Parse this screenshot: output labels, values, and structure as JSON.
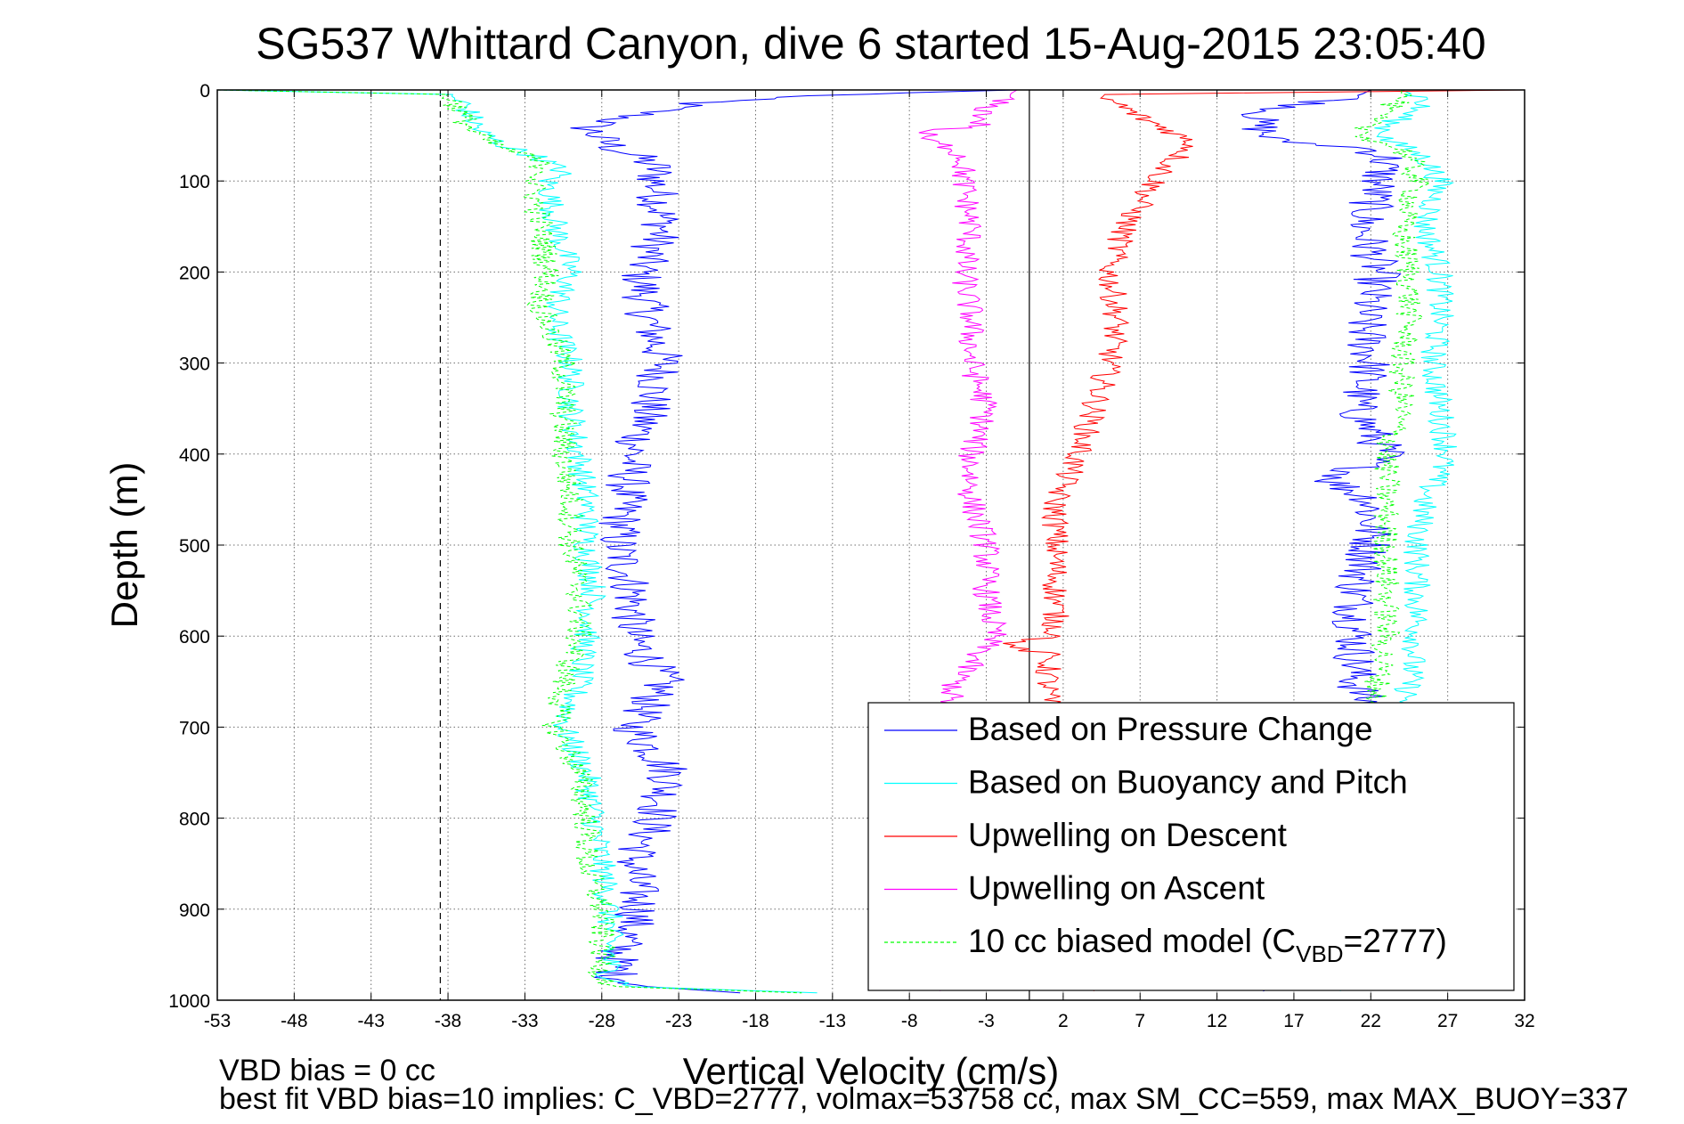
{
  "chart_data": {
    "type": "line",
    "title": "SG537 Whittard Canyon, dive 6 started 15-Aug-2015 23:05:40",
    "xlabel": "Vertical Velocity (cm/s)",
    "ylabel": "Depth (m)",
    "xlim": [
      -53,
      32
    ],
    "ylim": [
      0,
      1000
    ],
    "y_reversed": true,
    "grid": true,
    "xticks": [
      -53,
      -48,
      -43,
      -38,
      -33,
      -28,
      -23,
      -18,
      -13,
      -8,
      -3,
      2,
      7,
      12,
      17,
      22,
      27,
      32
    ],
    "yticks": [
      0,
      100,
      200,
      300,
      400,
      500,
      600,
      700,
      800,
      900,
      1000
    ],
    "legend_position": "bottom-right",
    "legend": [
      {
        "label": "Based on Pressure Change",
        "color": "#0000ff",
        "style": "solid"
      },
      {
        "label": "Based on Buoyancy and Pitch",
        "color": "#00ffff",
        "style": "solid"
      },
      {
        "label": "Upwelling on Descent",
        "color": "#ff0000",
        "style": "solid"
      },
      {
        "label": "Upwelling on Ascent",
        "color": "#ff00ff",
        "style": "solid"
      },
      {
        "label": "10 cc biased model (C",
        "sub": "VBD",
        "tail": "=2777)",
        "color": "#00ff00",
        "style": "dashed"
      }
    ],
    "reference_lines": [
      {
        "orientation": "vertical",
        "x": -38.5,
        "style": "dashed",
        "color": "#000000"
      },
      {
        "orientation": "vertical",
        "x": -0.2,
        "style": "solid",
        "color": "#000000"
      }
    ],
    "series": [
      {
        "color": "#0000ff",
        "width": 1,
        "jitter": 1.5,
        "depth": [
          0,
          3,
          8,
          15,
          25,
          40,
          55,
          65,
          75,
          85,
          100,
          150,
          200,
          250,
          300,
          350,
          400,
          450,
          500,
          550,
          600,
          650,
          700,
          750,
          800,
          850,
          900,
          950,
          975,
          985,
          992
        ],
        "x": [
          -1,
          -8,
          -17,
          -22,
          -25,
          -29,
          -28,
          -27,
          -25.5,
          -24.5,
          -24.5,
          -24,
          -25.5,
          -25,
          -24,
          -25,
          -26,
          -26.5,
          -27,
          -26,
          -26,
          -24,
          -26,
          -23.5,
          -24.5,
          -26,
          -25.5,
          -27,
          -27,
          -25,
          -19
        ]
      },
      {
        "color": "#0000ff",
        "width": 1,
        "jitter": 1.5,
        "depth": [
          0,
          8,
          15,
          25,
          35,
          45,
          55,
          65,
          75,
          100,
          150,
          200,
          250,
          300,
          350,
          400,
          430,
          450,
          500,
          550,
          600,
          650,
          700,
          750,
          800,
          850,
          900,
          950,
          990
        ],
        "x": [
          22,
          21,
          18,
          15,
          14.5,
          15,
          15.5,
          22,
          23,
          22.5,
          21.5,
          22.5,
          21.5,
          22,
          21,
          23,
          19.5,
          22,
          22,
          21,
          21,
          21,
          22.5,
          21.5,
          21,
          21.5,
          21.5,
          21,
          15
        ]
      },
      {
        "color": "#00ffff",
        "width": 1,
        "jitter": 0.9,
        "depth": [
          0,
          5,
          15,
          30,
          45,
          60,
          75,
          90,
          100,
          150,
          200,
          240,
          260,
          300,
          350,
          400,
          450,
          500,
          550,
          600,
          650,
          700,
          750,
          800,
          850,
          900,
          950,
          975,
          985,
          992
        ],
        "x": [
          -53,
          -38,
          -37,
          -36.5,
          -36,
          -34.5,
          -32,
          -30.5,
          -31.5,
          -31,
          -30,
          -31,
          -31,
          -30,
          -30,
          -29.5,
          -29,
          -29,
          -28.5,
          -29,
          -29.5,
          -30.5,
          -29,
          -28.5,
          -28,
          -27.5,
          -27.5,
          -27.5,
          -26,
          -14
        ]
      },
      {
        "color": "#00ffff",
        "width": 1,
        "jitter": 0.9,
        "depth": [
          0,
          10,
          20,
          40,
          55,
          65,
          75,
          100,
          150,
          200,
          250,
          300,
          350,
          400,
          450,
          500,
          550,
          600,
          650,
          700,
          750,
          800,
          850,
          900,
          950,
          990
        ],
        "x": [
          24,
          25.5,
          25,
          23,
          23,
          24.5,
          25.5,
          26.5,
          25.5,
          26.5,
          26.5,
          26,
          26.5,
          27,
          25.5,
          25,
          25,
          25,
          24.5,
          24,
          23.5,
          23,
          22.5,
          22,
          21.5,
          20
        ]
      },
      {
        "color": "#ff0000",
        "width": 1,
        "jitter": 0.9,
        "depth": [
          0,
          5,
          15,
          30,
          45,
          60,
          80,
          100,
          150,
          200,
          250,
          300,
          350,
          400,
          450,
          500,
          550,
          600,
          610,
          620,
          650,
          700,
          750,
          800,
          850,
          900,
          950,
          990
        ],
        "x": [
          32,
          4,
          5.5,
          7,
          9,
          10.5,
          9,
          8,
          6,
          5,
          5.5,
          5,
          4,
          3,
          1.5,
          1.5,
          1.5,
          1.5,
          -2,
          1,
          1,
          1,
          2,
          3,
          3.5,
          3.5,
          3.5,
          4
        ]
      },
      {
        "color": "#ff00ff",
        "width": 1,
        "jitter": 0.9,
        "depth": [
          0,
          20,
          40,
          45,
          55,
          65,
          75,
          100,
          150,
          200,
          250,
          300,
          350,
          400,
          450,
          500,
          550,
          600,
          650,
          700,
          750,
          800,
          850,
          900,
          950,
          990
        ],
        "x": [
          -1,
          -3,
          -3.5,
          -7,
          -7,
          -5,
          -4.5,
          -4.5,
          -4,
          -4.5,
          -4,
          -4,
          -3,
          -4,
          -4,
          -3,
          -3,
          -2.5,
          -5,
          -6,
          -6,
          -5.5,
          -6.5,
          -6.5,
          -6,
          -6
        ]
      },
      {
        "color": "#00ff00",
        "width": 1,
        "dash": "4,3",
        "jitter": 0.9,
        "depth": [
          0,
          5,
          15,
          30,
          45,
          60,
          75,
          90,
          100,
          150,
          200,
          240,
          260,
          300,
          350,
          400,
          450,
          500,
          550,
          600,
          650,
          700,
          750,
          800,
          850,
          900,
          950,
          975,
          985,
          992
        ],
        "x": [
          -53,
          -38,
          -37.5,
          -37,
          -36.5,
          -35,
          -32.5,
          -31.5,
          -32.5,
          -32,
          -31.5,
          -32,
          -31.5,
          -30.5,
          -30.5,
          -30.5,
          -30,
          -30,
          -29.5,
          -29.5,
          -30.5,
          -31,
          -29.5,
          -29,
          -29,
          -28,
          -28,
          -28,
          -27,
          -15
        ]
      },
      {
        "color": "#00ff00",
        "width": 1,
        "dash": "4,3",
        "jitter": 0.9,
        "depth": [
          0,
          10,
          20,
          40,
          55,
          65,
          75,
          100,
          150,
          200,
          250,
          300,
          350,
          400,
          450,
          500,
          550,
          600,
          650,
          700,
          750,
          800,
          850,
          900,
          950,
          990
        ],
        "x": [
          24,
          24,
          23,
          21.5,
          22,
          24,
          24.5,
          25,
          24,
          24.5,
          24.5,
          24,
          24,
          23,
          23,
          23,
          23,
          23,
          22.5,
          22,
          21.5,
          21,
          21,
          20.5,
          20,
          19.5
        ]
      }
    ]
  },
  "footer": {
    "line1": "VBD bias = 0 cc",
    "line2": "best fit VBD bias=10 implies: C_VBD=2777, volmax=53758 cc, max SM_CC=559, max MAX_BUOY=337"
  }
}
